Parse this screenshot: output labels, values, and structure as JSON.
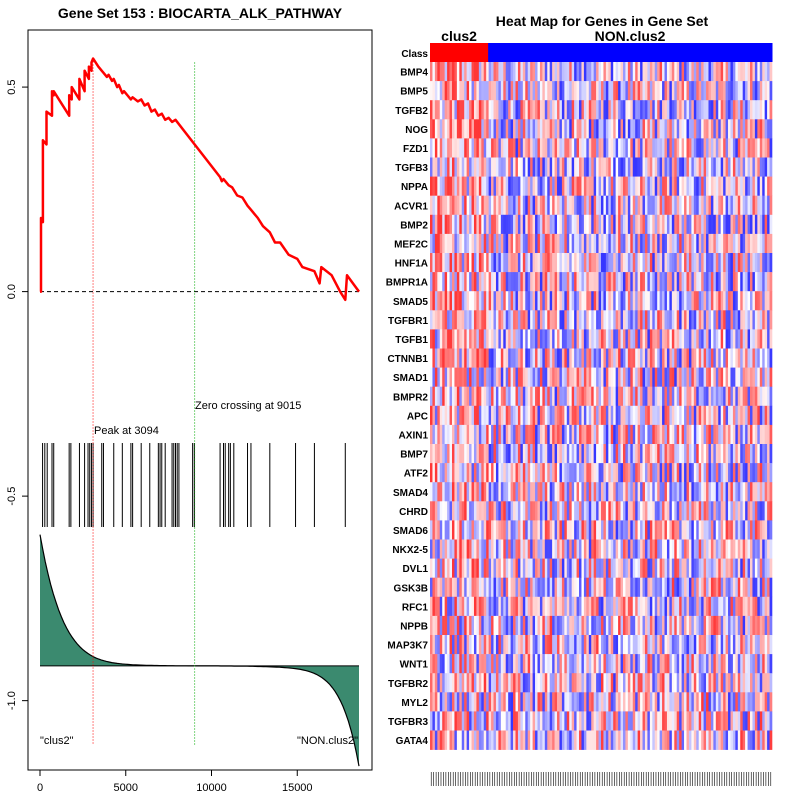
{
  "chart_data": [
    {
      "type": "line",
      "title": "Gene Set  153 : BIOCARTA_ALK_PATHWAY",
      "xlim": [
        0,
        18600
      ],
      "ylim": [
        -1.15,
        0.62
      ],
      "xticks": [
        0,
        5000,
        10000,
        15000
      ],
      "xtick_labels": [
        "0",
        "5000",
        "10000",
        "15000"
      ],
      "yticks": [
        0.5,
        0.0,
        -0.5,
        -1.0
      ],
      "ytick_labels": [
        "0.5",
        "0.0",
        "-0.5",
        "-1.0"
      ],
      "es_curve": {
        "x": [
          0,
          60,
          60,
          170,
          170,
          380,
          380,
          700,
          700,
          800,
          800,
          1700,
          1700,
          1850,
          1850,
          2300,
          2300,
          2600,
          2600,
          2850,
          2850,
          3000,
          3000,
          3094,
          3400,
          3600,
          3700,
          3900,
          4000,
          4200,
          4300,
          4500,
          4600,
          4800,
          4900,
          5300,
          5400,
          5700,
          5900,
          6100,
          6300,
          6500,
          6700,
          6900,
          7100,
          7300,
          7500,
          7700,
          7900,
          9015,
          10500,
          10600,
          10700,
          11000,
          11200,
          11500,
          11800,
          12100,
          12300,
          12500,
          12700,
          13000,
          13400,
          13700,
          14000,
          14500,
          15000,
          15300,
          16000,
          16300,
          16400,
          17000,
          17500,
          17800,
          17900,
          18600
        ],
        "y": [
          0,
          0,
          0.18,
          0.17,
          0.37,
          0.36,
          0.44,
          0.43,
          0.49,
          0.48,
          0.49,
          0.43,
          0.48,
          0.47,
          0.5,
          0.47,
          0.52,
          0.49,
          0.54,
          0.52,
          0.55,
          0.54,
          0.56,
          0.57,
          0.55,
          0.54,
          0.535,
          0.525,
          0.53,
          0.515,
          0.52,
          0.5,
          0.505,
          0.485,
          0.49,
          0.47,
          0.475,
          0.465,
          0.47,
          0.455,
          0.46,
          0.44,
          0.445,
          0.43,
          0.435,
          0.42,
          0.425,
          0.415,
          0.42,
          0.36,
          0.28,
          0.27,
          0.275,
          0.26,
          0.255,
          0.235,
          0.23,
          0.21,
          0.2,
          0.19,
          0.18,
          0.16,
          0.145,
          0.12,
          0.12,
          0.09,
          0.08,
          0.06,
          0.05,
          0.02,
          0.06,
          0.04,
          0.0,
          -0.02,
          0.04,
          0.0
        ]
      },
      "hits": [
        150,
        280,
        420,
        700,
        800,
        1700,
        1800,
        2300,
        2600,
        2800,
        2900,
        3000,
        3094,
        3600,
        3700,
        4300,
        4800,
        5300,
        5400,
        5900,
        6400,
        6900,
        7000,
        7100,
        7300,
        7700,
        7800,
        7900,
        8000,
        8100,
        8900,
        9000,
        10500,
        10700,
        10800,
        11000,
        11100,
        11300,
        12100,
        12300,
        13400,
        14900,
        16000,
        17800
      ],
      "ranked_metric": {
        "mid": -0.915,
        "start": -0.63,
        "end": -1.13
      },
      "peak_x": 3094,
      "zero_crossing_x": 9015,
      "peak_label": "Peak at 3094",
      "zero_label": "Zero crossing at 9015",
      "left_label": "\"clus2\"",
      "right_label": "\"NON.clus2\""
    },
    {
      "type": "heatmap",
      "title": "Heat Map for Genes in Gene Set",
      "class_row_label": "Class",
      "classes": [
        {
          "name": "clus2",
          "fraction": 0.17,
          "color": "#ff0000"
        },
        {
          "name": "NON.clus2",
          "fraction": 0.83,
          "color": "#0000ff"
        }
      ],
      "genes": [
        "BMP4",
        "BMP5",
        "TGFB2",
        "NOG",
        "FZD1",
        "TGFB3",
        "NPPA",
        "ACVR1",
        "BMP2",
        "MEF2C",
        "HNF1A",
        "BMPR1A",
        "SMAD5",
        "TGFBR1",
        "TGFB1",
        "CTNNB1",
        "SMAD1",
        "BMPR2",
        "APC",
        "AXIN1",
        "BMP7",
        "ATF2",
        "SMAD4",
        "CHRD",
        "SMAD6",
        "NKX2-5",
        "DVL1",
        "GSK3B",
        "RFC1",
        "NPPB",
        "MAP3K7",
        "WNT1",
        "TGFBR2",
        "MYL2",
        "TGFBR3",
        "GATA4"
      ],
      "n_samples": 140
    }
  ]
}
